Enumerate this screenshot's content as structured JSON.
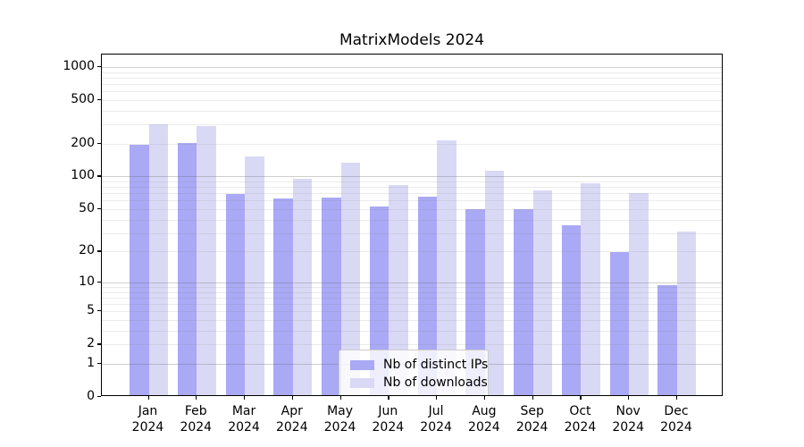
{
  "chart_data": {
    "type": "bar",
    "title": "MatrixModels 2024",
    "categories": [
      "Jan 2024",
      "Feb 2024",
      "Mar 2024",
      "Apr 2024",
      "May 2024",
      "Jun 2024",
      "Jul 2024",
      "Aug 2024",
      "Sep 2024",
      "Oct 2024",
      "Nov 2024",
      "Dec 2024"
    ],
    "series": [
      {
        "name": "Nb of distinct IPs",
        "color": "#a9a9f5",
        "values": [
          187,
          196,
          66,
          60,
          62,
          51,
          63,
          48,
          48,
          34,
          19,
          9
        ]
      },
      {
        "name": "Nb of downloads",
        "color": "#d9d9f6",
        "values": [
          290,
          279,
          147,
          92,
          128,
          80,
          207,
          108,
          72,
          83,
          68,
          30
        ]
      }
    ],
    "xlabel": "",
    "ylabel": "",
    "yscale": "log1p",
    "yticks": [
      0,
      1,
      2,
      5,
      10,
      20,
      50,
      100,
      200,
      500,
      1000
    ],
    "ylim": [
      0,
      1300
    ],
    "grid": true,
    "legend_position": "lower center"
  },
  "colors": {
    "bar_distinct_ips": "#a9a9f5",
    "bar_downloads": "#d9d9f6",
    "grid_major": "#b5b5b5",
    "grid_minor": "#e8e8e8",
    "axis_spine": "#000000",
    "text": "#000000",
    "legend_border": "#cccccc",
    "legend_background": "#ffffff"
  }
}
